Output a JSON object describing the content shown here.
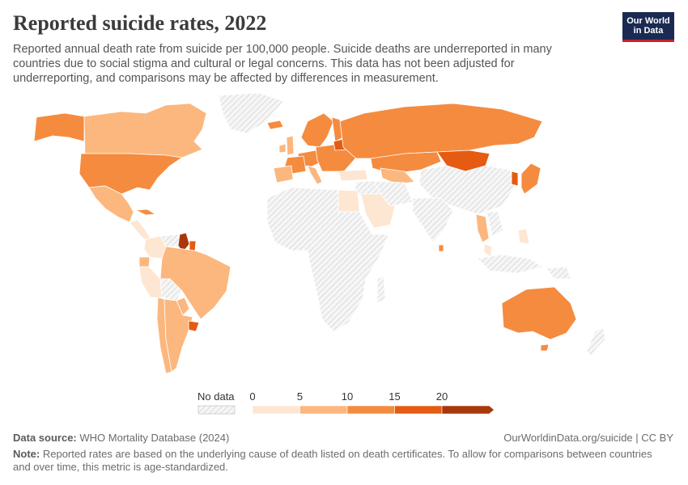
{
  "header": {
    "title": "Reported suicide rates, 2022",
    "subtitle": "Reported annual death rate from suicide per 100,000 people. Suicide deaths are underreported in many countries due to social stigma and cultural or legal concerns. This data has not been adjusted for underreporting, and comparisons may be affected by differences in measurement."
  },
  "logo": {
    "line1": "Our World",
    "line2": "in Data"
  },
  "legend": {
    "no_data_label": "No data",
    "ticks": [
      "0",
      "5",
      "10",
      "15",
      "20"
    ],
    "bins": [
      {
        "min": 0,
        "max": 5,
        "color": "#fde6d2"
      },
      {
        "min": 5,
        "max": 10,
        "color": "#fbb77e"
      },
      {
        "min": 10,
        "max": 15,
        "color": "#f58b3f"
      },
      {
        "min": 15,
        "max": 20,
        "color": "#e55b12"
      },
      {
        "min": 20,
        "max": null,
        "color": "#a8380a"
      }
    ],
    "no_data_color": "#eeeeee"
  },
  "map_regions": [
    {
      "name": "Canada",
      "bin": 1
    },
    {
      "name": "Alaska",
      "bin": 2
    },
    {
      "name": "United States",
      "bin": 2
    },
    {
      "name": "Greenland",
      "bin": -1
    },
    {
      "name": "Mexico",
      "bin": 1
    },
    {
      "name": "Cuba",
      "bin": 2
    },
    {
      "name": "Central America",
      "bin": 0
    },
    {
      "name": "Colombia",
      "bin": 0
    },
    {
      "name": "Venezuela",
      "bin": -1
    },
    {
      "name": "Guyana",
      "bin": 4
    },
    {
      "name": "Suriname",
      "bin": 3
    },
    {
      "name": "Ecuador",
      "bin": 1
    },
    {
      "name": "Peru",
      "bin": 0
    },
    {
      "name": "Brazil",
      "bin": 1
    },
    {
      "name": "Bolivia",
      "bin": -1
    },
    {
      "name": "Paraguay",
      "bin": 1
    },
    {
      "name": "Chile",
      "bin": 1
    },
    {
      "name": "Argentina",
      "bin": 1
    },
    {
      "name": "Uruguay",
      "bin": 3
    },
    {
      "name": "Iceland",
      "bin": 2
    },
    {
      "name": "United Kingdom",
      "bin": 1
    },
    {
      "name": "Ireland",
      "bin": 1
    },
    {
      "name": "Scandinavia",
      "bin": 2
    },
    {
      "name": "Finland",
      "bin": 2
    },
    {
      "name": "Western Europe",
      "bin": 2
    },
    {
      "name": "France",
      "bin": 2
    },
    {
      "name": "Iberia",
      "bin": 1
    },
    {
      "name": "Italy",
      "bin": 1
    },
    {
      "name": "Eastern Europe",
      "bin": 2
    },
    {
      "name": "Baltics",
      "bin": 3
    },
    {
      "name": "Russia",
      "bin": 2
    },
    {
      "name": "Kazakhstan",
      "bin": 2
    },
    {
      "name": "Central Asia",
      "bin": 1
    },
    {
      "name": "Turkey",
      "bin": 0
    },
    {
      "name": "Middle East",
      "bin": -1
    },
    {
      "name": "Egypt",
      "bin": 0
    },
    {
      "name": "Saudi Arabia",
      "bin": 0
    },
    {
      "name": "Iran",
      "bin": -1
    },
    {
      "name": "Mongolia",
      "bin": 3
    },
    {
      "name": "China",
      "bin": -1
    },
    {
      "name": "Korea",
      "bin": 3
    },
    {
      "name": "Japan",
      "bin": 2
    },
    {
      "name": "India",
      "bin": -1
    },
    {
      "name": "Sri Lanka",
      "bin": 2
    },
    {
      "name": "Thailand",
      "bin": 1
    },
    {
      "name": "Southeast Asia",
      "bin": -1
    },
    {
      "name": "Philippines",
      "bin": 0
    },
    {
      "name": "Malaysia",
      "bin": 0
    },
    {
      "name": "Indonesia",
      "bin": -1
    },
    {
      "name": "Africa",
      "bin": -1
    },
    {
      "name": "Madagascar",
      "bin": -1
    },
    {
      "name": "Australia",
      "bin": 2
    },
    {
      "name": "Tasmania",
      "bin": 2
    },
    {
      "name": "New Zealand",
      "bin": -1
    },
    {
      "name": "Papua New Guinea",
      "bin": -1
    }
  ],
  "footer": {
    "source_label": "Data source:",
    "source_text": "WHO Mortality Database (2024)",
    "credit": "OurWorldinData.org/suicide | CC BY",
    "note_label": "Note:",
    "note_text": "Reported rates are based on the underlying cause of death listed on death certificates. To allow for comparisons between countries and over time, this metric is age-standardized."
  }
}
